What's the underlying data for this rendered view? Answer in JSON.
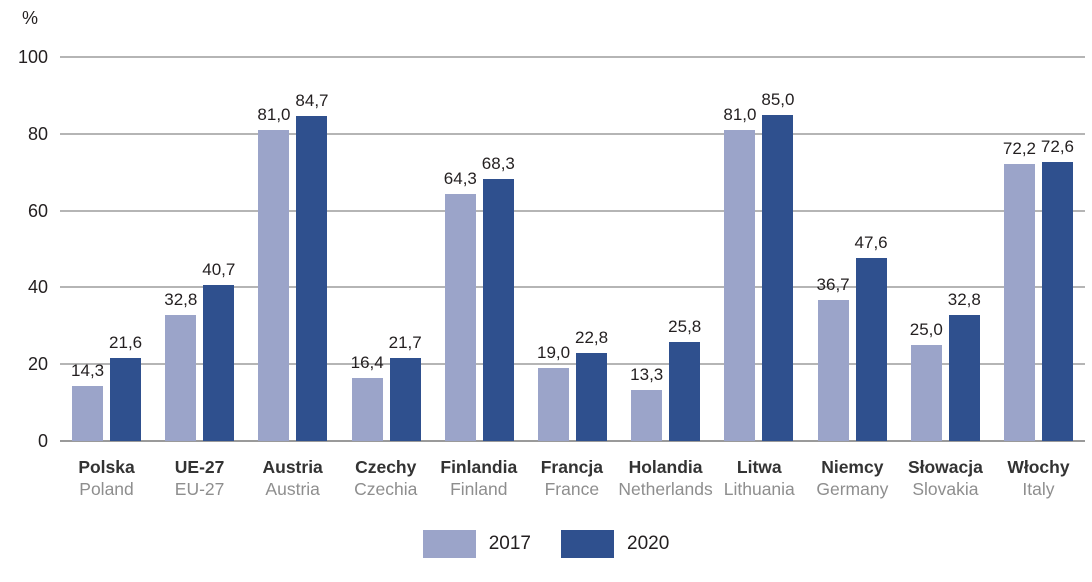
{
  "chart_data": {
    "type": "bar",
    "title": "",
    "y_axis_unit": "%",
    "ylim": [
      0,
      100
    ],
    "yticks": [
      0,
      20,
      40,
      60,
      80,
      100
    ],
    "grid": true,
    "legend_position": "bottom",
    "decimal_separator": ",",
    "categories": [
      {
        "pl": "Polska",
        "en": "Poland"
      },
      {
        "pl": "UE-27",
        "en": "EU-27"
      },
      {
        "pl": "Austria",
        "en": "Austria"
      },
      {
        "pl": "Czechy",
        "en": "Czechia"
      },
      {
        "pl": "Finlandia",
        "en": "Finland"
      },
      {
        "pl": "Francja",
        "en": "France"
      },
      {
        "pl": "Holandia",
        "en": "Netherlands"
      },
      {
        "pl": "Litwa",
        "en": "Lithuania"
      },
      {
        "pl": "Niemcy",
        "en": "Germany"
      },
      {
        "pl": "Słowacja",
        "en": "Slovakia"
      },
      {
        "pl": "Włochy",
        "en": "Italy"
      }
    ],
    "series": [
      {
        "name": "2017",
        "color": "#9ba4c9",
        "values": [
          14.3,
          32.8,
          81.0,
          16.4,
          64.3,
          19.0,
          13.3,
          81.0,
          36.7,
          25.0,
          72.2
        ],
        "value_labels": [
          "14,3",
          "32,8",
          "81,0",
          "16,4",
          "64,3",
          "19,0",
          "13,3",
          "81,0",
          "36,7",
          "25,0",
          "72,2"
        ]
      },
      {
        "name": "2020",
        "color": "#2f508e",
        "values": [
          21.6,
          40.7,
          84.7,
          21.7,
          68.3,
          22.8,
          25.8,
          85.0,
          47.6,
          32.8,
          72.6
        ],
        "value_labels": [
          "21,6",
          "40,7",
          "84,7",
          "21,7",
          "68,3",
          "22,8",
          "25,8",
          "85,0",
          "47,6",
          "32,8",
          "72,6"
        ]
      }
    ],
    "colors": {
      "gridline": "#b5b5b5",
      "axis_line": "#9a9a9a",
      "value_text": "#231f20",
      "category_primary_text": "#333333",
      "category_secondary_text": "#8e8e8e"
    }
  }
}
